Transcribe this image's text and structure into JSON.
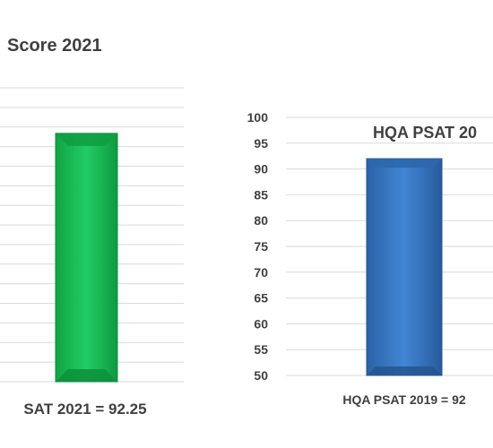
{
  "chart_data": [
    {
      "type": "bar",
      "title": "Score 2021",
      "categories": [
        "SAT 2021 = 92.25"
      ],
      "values": [
        92.25
      ],
      "ylim": [
        50,
        100
      ],
      "grid": true,
      "color": "#1dc35a"
    },
    {
      "type": "bar",
      "title": "HQA PSAT 20",
      "categories": [
        "HQA PSAT 2019 = 92"
      ],
      "values": [
        92
      ],
      "ylim": [
        50,
        100
      ],
      "yticks": [
        50,
        55,
        60,
        65,
        70,
        75,
        80,
        85,
        90,
        95,
        100
      ],
      "grid": true,
      "color": "#3a78c2"
    }
  ]
}
